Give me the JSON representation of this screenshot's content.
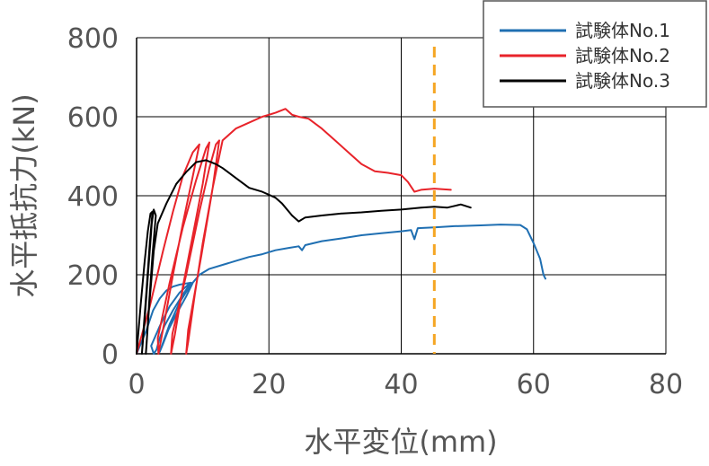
{
  "chart_data": {
    "type": "line",
    "title": "",
    "xlabel": "水平変位(mm)",
    "ylabel": "水平抵抗力(kN)",
    "xlim": [
      0,
      80
    ],
    "ylim": [
      0,
      800
    ],
    "x_ticks": [
      0,
      20,
      40,
      60,
      80
    ],
    "y_ticks": [
      0,
      200,
      400,
      600,
      800
    ],
    "grid": true,
    "legend_position": "top-right",
    "reference_line": {
      "x": 45,
      "color": "#f5a623",
      "style": "dashed"
    },
    "series": [
      {
        "name": "試験体No.1",
        "color": "#1f6fb2",
        "points": [
          [
            0,
            0
          ],
          [
            1.5,
            60
          ],
          [
            2.5,
            110
          ],
          [
            3.5,
            140
          ],
          [
            4.5,
            160
          ],
          [
            5.5,
            170
          ],
          [
            6.5,
            175
          ],
          [
            7.5,
            178
          ],
          [
            8.2,
            180
          ],
          [
            7,
            150
          ],
          [
            5.5,
            110
          ],
          [
            4.2,
            70
          ],
          [
            3.5,
            40
          ],
          [
            3.0,
            10
          ],
          [
            2.6,
            0
          ],
          [
            2.2,
            20
          ],
          [
            3.5,
            70
          ],
          [
            5,
            120
          ],
          [
            6.5,
            155
          ],
          [
            7.8,
            175
          ],
          [
            8.5,
            180
          ],
          [
            7.5,
            145
          ],
          [
            6,
            100
          ],
          [
            4.8,
            60
          ],
          [
            4,
            25
          ],
          [
            3.5,
            5
          ],
          [
            5,
            75
          ],
          [
            6.5,
            130
          ],
          [
            8,
            170
          ],
          [
            9.5,
            200
          ],
          [
            11,
            215
          ],
          [
            13,
            225
          ],
          [
            15,
            235
          ],
          [
            17,
            245
          ],
          [
            19,
            252
          ],
          [
            21,
            262
          ],
          [
            23,
            268
          ],
          [
            24.5,
            272
          ],
          [
            25,
            262
          ],
          [
            25.5,
            275
          ],
          [
            28,
            285
          ],
          [
            31,
            292
          ],
          [
            34,
            300
          ],
          [
            37,
            305
          ],
          [
            40,
            310
          ],
          [
            41.5,
            313
          ],
          [
            42,
            290
          ],
          [
            42.5,
            318
          ],
          [
            45,
            320
          ],
          [
            48,
            323
          ],
          [
            52,
            325
          ],
          [
            55,
            327
          ],
          [
            58,
            326
          ],
          [
            59,
            315
          ],
          [
            60,
            280
          ],
          [
            61,
            240
          ],
          [
            61.5,
            200
          ],
          [
            61.8,
            190
          ]
        ]
      },
      {
        "name": "試験体No.2",
        "color": "#e8232a",
        "points": [
          [
            0,
            0
          ],
          [
            2,
            120
          ],
          [
            4,
            260
          ],
          [
            5.5,
            360
          ],
          [
            7,
            450
          ],
          [
            8.5,
            510
          ],
          [
            9.5,
            530
          ],
          [
            8.5,
            450
          ],
          [
            7,
            330
          ],
          [
            5.5,
            200
          ],
          [
            4.2,
            80
          ],
          [
            3.3,
            0
          ],
          [
            3.2,
            40
          ],
          [
            5,
            180
          ],
          [
            7,
            320
          ],
          [
            9,
            440
          ],
          [
            10.5,
            520
          ],
          [
            11,
            535
          ],
          [
            10,
            430
          ],
          [
            8.5,
            300
          ],
          [
            7,
            170
          ],
          [
            5.8,
            50
          ],
          [
            5.2,
            0
          ],
          [
            5.4,
            50
          ],
          [
            7.5,
            200
          ],
          [
            9.5,
            360
          ],
          [
            11,
            470
          ],
          [
            12,
            530
          ],
          [
            12.5,
            540
          ],
          [
            11.5,
            420
          ],
          [
            10,
            280
          ],
          [
            8.8,
            150
          ],
          [
            7.8,
            30
          ],
          [
            7.5,
            0
          ],
          [
            7.8,
            60
          ],
          [
            9.8,
            250
          ],
          [
            11.5,
            420
          ],
          [
            12.5,
            500
          ],
          [
            13,
            540
          ],
          [
            15,
            570
          ],
          [
            17,
            585
          ],
          [
            19,
            600
          ],
          [
            21,
            610
          ],
          [
            22.5,
            620
          ],
          [
            23.5,
            605
          ],
          [
            24.5,
            600
          ],
          [
            26,
            595
          ],
          [
            28,
            570
          ],
          [
            30,
            540
          ],
          [
            32,
            510
          ],
          [
            34,
            480
          ],
          [
            36,
            462
          ],
          [
            38,
            458
          ],
          [
            40,
            452
          ],
          [
            41,
            435
          ],
          [
            42,
            410
          ],
          [
            43,
            415
          ],
          [
            45,
            418
          ],
          [
            47.5,
            415
          ]
        ]
      },
      {
        "name": "試験体No.3",
        "color": "#000000",
        "points": [
          [
            0,
            0
          ],
          [
            0.6,
            120
          ],
          [
            1.2,
            230
          ],
          [
            1.7,
            310
          ],
          [
            2.1,
            355
          ],
          [
            2.4,
            360
          ],
          [
            2.0,
            280
          ],
          [
            1.5,
            160
          ],
          [
            1.0,
            50
          ],
          [
            0.8,
            0
          ],
          [
            1.2,
            80
          ],
          [
            1.8,
            220
          ],
          [
            2.3,
            330
          ],
          [
            2.6,
            365
          ],
          [
            2.9,
            350
          ],
          [
            2.4,
            250
          ],
          [
            1.9,
            130
          ],
          [
            1.5,
            20
          ],
          [
            1.4,
            0
          ],
          [
            1.9,
            120
          ],
          [
            2.6,
            260
          ],
          [
            3.2,
            330
          ],
          [
            4.5,
            380
          ],
          [
            6,
            430
          ],
          [
            7.5,
            460
          ],
          [
            9,
            485
          ],
          [
            10.5,
            490
          ],
          [
            12,
            480
          ],
          [
            13,
            470
          ],
          [
            15,
            445
          ],
          [
            17,
            420
          ],
          [
            19,
            410
          ],
          [
            21,
            395
          ],
          [
            22,
            380
          ],
          [
            23.5,
            350
          ],
          [
            24.5,
            335
          ],
          [
            25.5,
            345
          ],
          [
            28,
            350
          ],
          [
            31,
            355
          ],
          [
            34,
            358
          ],
          [
            37,
            362
          ],
          [
            40,
            365
          ],
          [
            43,
            370
          ],
          [
            45,
            372
          ],
          [
            47,
            370
          ],
          [
            49,
            378
          ],
          [
            50.5,
            370
          ]
        ]
      }
    ]
  }
}
